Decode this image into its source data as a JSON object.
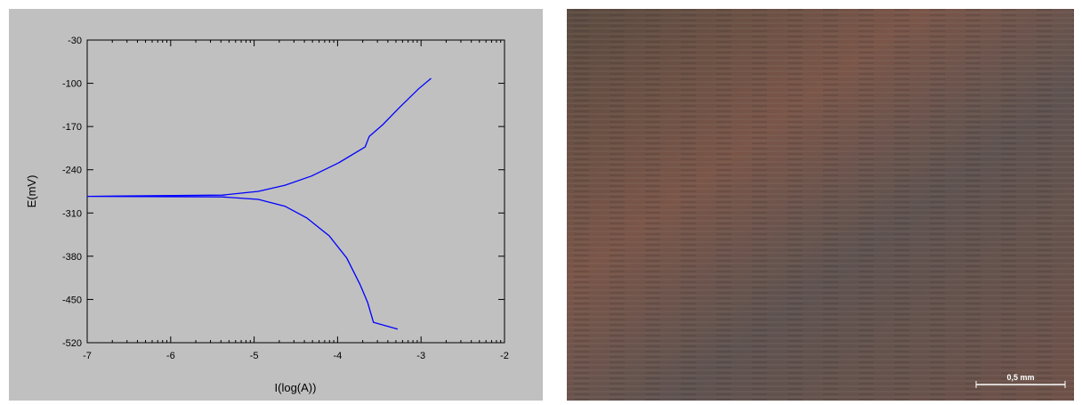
{
  "chart_data": {
    "type": "line",
    "x_label": "I(log(A))",
    "y_label": "E(mV)",
    "xlim": [
      -7,
      -2
    ],
    "xticks": [
      -7,
      -6,
      -5,
      -4,
      -3,
      -2
    ],
    "ylim": [
      -520,
      -30
    ],
    "yticks": [
      -30,
      -100,
      -170,
      -240,
      -310,
      -380,
      -450,
      -520
    ],
    "series": [
      {
        "color": "#0000ff",
        "x": [
          -3.28,
          -3.57,
          -3.64,
          -3.73,
          -3.89,
          -4.1,
          -4.37,
          -4.63,
          -4.95,
          -5.38,
          -7,
          -5.38,
          -4.95,
          -4.63,
          -4.31,
          -3.99,
          -3.67,
          -3.62,
          -3.46,
          -3.25,
          -3.03,
          -2.88
        ],
        "values": [
          -498,
          -487,
          -455,
          -426,
          -383,
          -347,
          -318,
          -299,
          -288,
          -284,
          -283,
          -281,
          -275,
          -265,
          -250,
          -229,
          -203,
          -186,
          -167,
          -138,
          -109,
          -92
        ]
      }
    ]
  },
  "micrograph": {
    "scale_label": "0,5 mm"
  }
}
